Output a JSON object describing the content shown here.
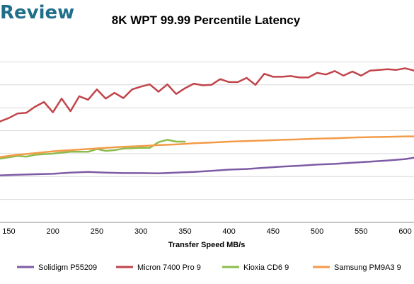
{
  "brand": {
    "text": "Review",
    "color": "#1f6f8b"
  },
  "chart_data": {
    "type": "line",
    "title": "8K WPT 99.99 Percentile Latency",
    "xlabel": "Transfer Speed MB/s",
    "ylabel": "",
    "xlim": [
      140,
      610
    ],
    "ylim": [
      0,
      8
    ],
    "grid": true,
    "legend": "bottom",
    "x_ticks": [
      150,
      200,
      250,
      300,
      350,
      400,
      450,
      500,
      550,
      600
    ],
    "x_tick_labels": [
      "150",
      "200",
      "250",
      "300",
      "350",
      "400",
      "450",
      "500",
      "550",
      "600"
    ],
    "y_ticks": [
      0,
      1,
      2,
      3,
      4,
      5,
      6,
      7
    ],
    "series": [
      {
        "name": "Solidigm P55209",
        "color": "#7e5ba5",
        "x": [
          140,
          160,
          180,
          200,
          220,
          240,
          260,
          280,
          300,
          320,
          340,
          360,
          380,
          400,
          420,
          440,
          460,
          480,
          500,
          520,
          540,
          560,
          580,
          600,
          610
        ],
        "y": [
          2.05,
          2.08,
          2.1,
          2.12,
          2.17,
          2.2,
          2.17,
          2.15,
          2.15,
          2.14,
          2.17,
          2.2,
          2.25,
          2.3,
          2.33,
          2.38,
          2.43,
          2.47,
          2.52,
          2.55,
          2.6,
          2.65,
          2.7,
          2.76,
          2.82
        ]
      },
      {
        "name": "Micron 7400 Pro 9",
        "color": "#c0454b",
        "x": [
          140,
          150,
          160,
          170,
          180,
          190,
          200,
          210,
          220,
          230,
          240,
          250,
          260,
          270,
          280,
          290,
          300,
          310,
          320,
          330,
          340,
          350,
          360,
          370,
          380,
          390,
          400,
          410,
          420,
          430,
          440,
          450,
          460,
          470,
          480,
          490,
          500,
          510,
          520,
          530,
          540,
          550,
          560,
          570,
          580,
          590,
          600,
          610
        ],
        "y": [
          4.4,
          4.55,
          4.75,
          4.78,
          5.05,
          5.25,
          4.8,
          5.4,
          4.85,
          5.5,
          5.35,
          5.8,
          5.4,
          5.65,
          5.42,
          5.8,
          5.92,
          6.02,
          5.7,
          6.02,
          5.6,
          5.85,
          6.05,
          5.98,
          6.0,
          6.25,
          6.12,
          6.12,
          6.3,
          6.0,
          6.48,
          6.35,
          6.35,
          6.38,
          6.32,
          6.32,
          6.52,
          6.45,
          6.6,
          6.4,
          6.58,
          6.4,
          6.62,
          6.65,
          6.68,
          6.65,
          6.72,
          6.62
        ]
      },
      {
        "name": "Kioxia CD6 9",
        "color": "#8dbc4e",
        "x": [
          140,
          160,
          170,
          180,
          200,
          220,
          240,
          250,
          260,
          270,
          280,
          300,
          310,
          320,
          330,
          340,
          350
        ],
        "y": [
          2.78,
          2.9,
          2.87,
          2.95,
          3.0,
          3.08,
          3.08,
          3.2,
          3.12,
          3.15,
          3.22,
          3.25,
          3.25,
          3.5,
          3.6,
          3.52,
          3.52
        ]
      },
      {
        "name": "Samsung PM9A3 9",
        "color": "#f39b48",
        "x": [
          140,
          160,
          180,
          200,
          220,
          240,
          260,
          280,
          300,
          320,
          340,
          360,
          380,
          400,
          420,
          440,
          460,
          480,
          500,
          520,
          540,
          560,
          580,
          600,
          610
        ],
        "y": [
          2.85,
          2.95,
          3.02,
          3.1,
          3.15,
          3.2,
          3.25,
          3.3,
          3.33,
          3.37,
          3.4,
          3.45,
          3.48,
          3.52,
          3.55,
          3.57,
          3.6,
          3.62,
          3.65,
          3.67,
          3.7,
          3.72,
          3.73,
          3.75,
          3.75
        ]
      }
    ]
  }
}
